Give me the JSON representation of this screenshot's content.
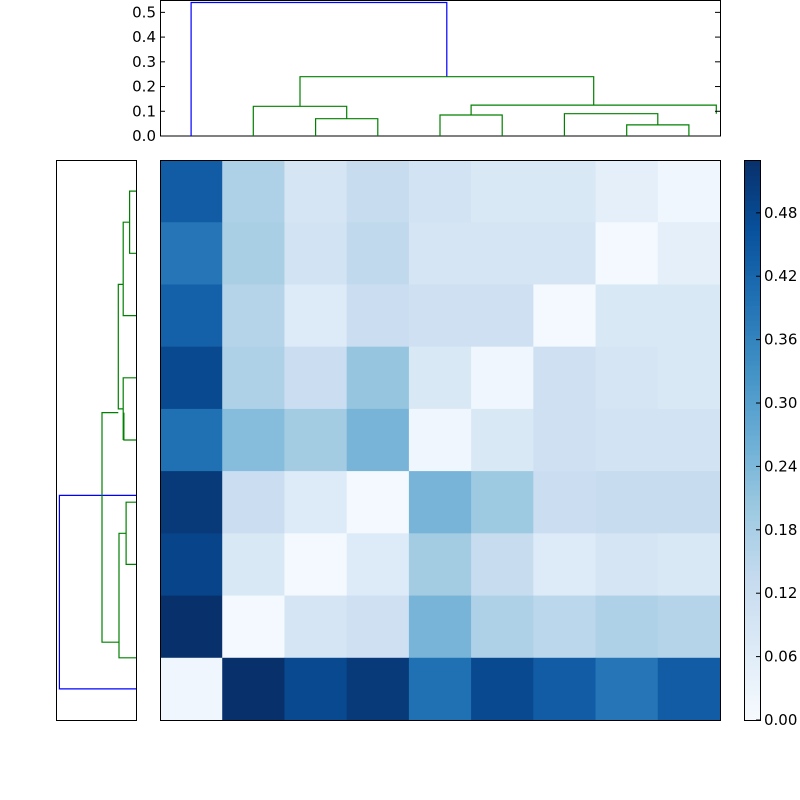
{
  "chart_data": {
    "type": "heatmap",
    "title": "",
    "rows": 9,
    "cols": 9,
    "matrix": [
      [
        0.44,
        0.17,
        0.09,
        0.13,
        0.1,
        0.08,
        0.08,
        0.05,
        0.02
      ],
      [
        0.39,
        0.18,
        0.1,
        0.14,
        0.09,
        0.09,
        0.09,
        0.01,
        0.05
      ],
      [
        0.43,
        0.16,
        0.07,
        0.12,
        0.11,
        0.11,
        0.01,
        0.08,
        0.08
      ],
      [
        0.48,
        0.17,
        0.12,
        0.21,
        0.08,
        0.02,
        0.11,
        0.09,
        0.08
      ],
      [
        0.4,
        0.23,
        0.19,
        0.25,
        0.02,
        0.08,
        0.11,
        0.1,
        0.1
      ],
      [
        0.51,
        0.12,
        0.07,
        0.01,
        0.25,
        0.2,
        0.12,
        0.13,
        0.13
      ],
      [
        0.49,
        0.08,
        0.01,
        0.07,
        0.19,
        0.13,
        0.07,
        0.09,
        0.08
      ],
      [
        0.55,
        0.01,
        0.09,
        0.11,
        0.25,
        0.17,
        0.15,
        0.17,
        0.16
      ],
      [
        0.02,
        0.55,
        0.48,
        0.51,
        0.4,
        0.48,
        0.44,
        0.39,
        0.44
      ]
    ],
    "colormap": "Blues",
    "colorbar": {
      "range": [
        0,
        0.53
      ],
      "ticks": [
        "0.00",
        "0.06",
        "0.12",
        "0.18",
        "0.24",
        "0.30",
        "0.36",
        "0.42",
        "0.48"
      ],
      "tick_values": [
        0.0,
        0.06,
        0.12,
        0.18,
        0.24,
        0.3,
        0.36,
        0.42,
        0.48
      ]
    },
    "top_dendrogram": {
      "ylim": [
        0,
        0.55
      ],
      "yticks": [
        "0.0",
        "0.1",
        "0.2",
        "0.3",
        "0.4",
        "0.5"
      ],
      "ytick_values": [
        0.0,
        0.1,
        0.2,
        0.3,
        0.4,
        0.5
      ],
      "links": [
        {
          "left": 0,
          "right": 4.11,
          "height": 0.54,
          "left_base": 0,
          "right_base": 0.24,
          "color": "#0000ff"
        },
        {
          "left": 1.75,
          "right": 6.47,
          "height": 0.24,
          "left_base": 0.12,
          "right_base": 0.125,
          "color": "#008000"
        },
        {
          "left": 1,
          "right": 2.5,
          "height": 0.12,
          "left_base": 0,
          "right_base": 0.07,
          "color": "#008000"
        },
        {
          "left": 2,
          "right": 3,
          "height": 0.07,
          "left_base": 0,
          "right_base": 0,
          "color": "#008000"
        },
        {
          "left": 4.5,
          "right": 8.44,
          "height": 0.125,
          "left_base": 0.085,
          "right_base": 0.09,
          "color": "#008000"
        },
        {
          "left": 4,
          "right": 5,
          "height": 0.085,
          "left_base": 0,
          "right_base": 0,
          "color": "#008000"
        },
        {
          "left": 6,
          "right": 7.5,
          "height": 0.09,
          "left_base": 0,
          "right_base": 0.045,
          "color": "#008000"
        },
        {
          "left": 7,
          "right": 8,
          "height": 0.045,
          "left_base": 0,
          "right_base": 0,
          "color": "#008000"
        }
      ]
    },
    "left_dendrogram": {
      "xlim": [
        0.55,
        0
      ],
      "links": [
        {
          "top": 0,
          "bottom": 4.89,
          "height": 0.54,
          "top_base": 0,
          "bottom_base": 0.24,
          "color": "#0000ff"
        },
        {
          "top": 3.56,
          "bottom": 7.25,
          "height": 0.24,
          "top_base": 0.125,
          "bottom_base": 0.12,
          "color": "#008000"
        },
        {
          "top": 6.5,
          "bottom": 8,
          "height": 0.12,
          "top_base": 0.07,
          "bottom_base": 0,
          "color": "#008000"
        },
        {
          "top": 6,
          "bottom": 7,
          "height": 0.07,
          "top_base": 0,
          "bottom_base": 0,
          "color": "#008000"
        },
        {
          "top": 4,
          "bottom": 5,
          "height": 0.085,
          "top_base": 0,
          "bottom_base": 0,
          "color": "#008000"
        },
        {
          "top": 0.56,
          "bottom": 6.56,
          "height": 0.125,
          "top_base": 0.09,
          "bottom_base": 0.085,
          "color": "#008000"
        },
        {
          "top": 2,
          "bottom": 1.5,
          "height": 0.09,
          "top_base": 0,
          "bottom_base": 0.045,
          "color": "#008000"
        },
        {
          "top": 3,
          "bottom": 1,
          "height": 0.09,
          "top_base": 0,
          "bottom_base": 0.045,
          "color": "#008000"
        },
        {
          "top": 0.5,
          "bottom": 2.5,
          "height": 0.09,
          "top_base": 0.045,
          "bottom_base": 0.045,
          "color": "#008000"
        },
        {
          "top": 0,
          "bottom": 1,
          "height": 0.045,
          "top_base": 0,
          "bottom_base": 0,
          "color": "#008000"
        }
      ]
    }
  }
}
